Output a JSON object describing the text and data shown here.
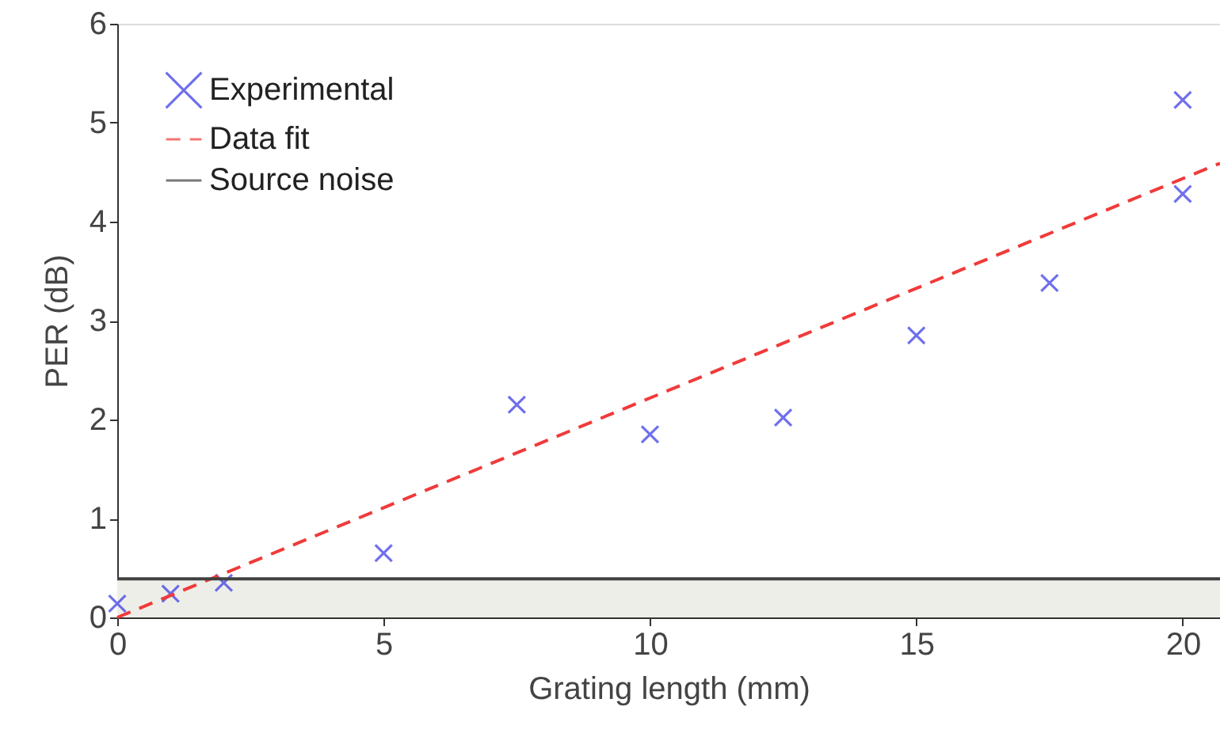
{
  "chart_data": {
    "type": "scatter",
    "xlabel": "Grating length (mm)",
    "ylabel": "PER (dB)",
    "xlim": [
      0,
      20.7
    ],
    "ylim": [
      0,
      6
    ],
    "xticks": [
      0,
      5,
      10,
      15,
      20
    ],
    "yticks": [
      0,
      1,
      2,
      3,
      4,
      5,
      6
    ],
    "grid": false,
    "legend": "top left",
    "marker": "cross",
    "series": [
      {
        "name": "Experimental",
        "color": "#3333e6",
        "x": [
          0,
          1,
          2,
          5,
          7.5,
          10,
          12.5,
          15,
          17.5,
          20,
          20
        ],
        "values": [
          0.14,
          0.24,
          0.35,
          0.65,
          2.15,
          1.85,
          2.02,
          2.85,
          3.38,
          4.28,
          5.23
        ]
      },
      {
        "name": "Data fit",
        "type": "line",
        "color": "#f03a3a",
        "line_style": "dashed",
        "marker": "none",
        "x": [
          0,
          20.7
        ],
        "values": [
          0,
          4.59
        ]
      },
      {
        "name": "Source noise",
        "type": "line",
        "color": "#404040",
        "line_style": "solid",
        "marker": "none",
        "x": [
          0,
          20.7
        ],
        "values": [
          0.39,
          0.39
        ]
      }
    ],
    "bands": [
      {
        "axis": "y",
        "from": 0,
        "to": 0.39,
        "color": "#eeeee8"
      }
    ]
  }
}
